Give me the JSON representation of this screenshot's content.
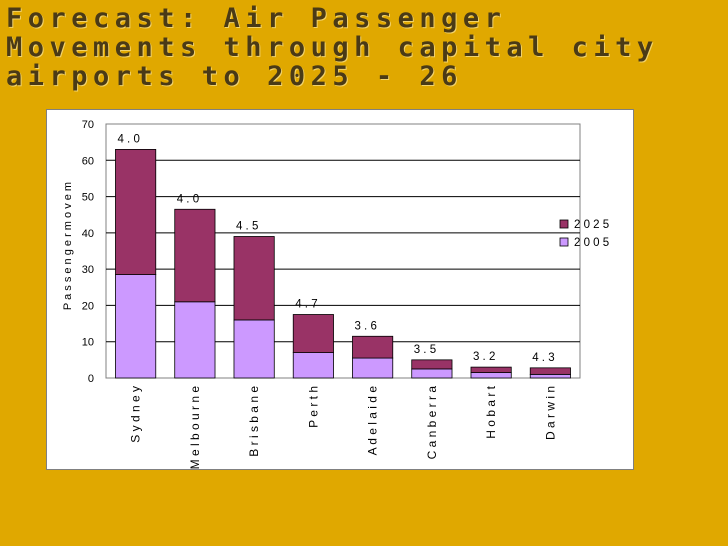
{
  "title": "Forecast: Air Passenger Movements through capital city airports to 2025 - 26",
  "chart_data": {
    "type": "bar",
    "stacked": true,
    "categories": [
      "Sydney",
      "Melbourne",
      "Brisbane",
      "Perth",
      "Adelaide",
      "Canberra",
      "Hobart",
      "Darwin"
    ],
    "category_labels": [
      "S y d n e y",
      "M e l b o u r n e",
      "B r i s b a n e",
      "P e r t h",
      "A d e l a i d e",
      "C a n b e r r a",
      "H o b a r t",
      "D a r w i n"
    ],
    "series": [
      {
        "name": "2005",
        "label": "2 0 0 5",
        "color": "#cc99ff",
        "values": [
          28.5,
          21,
          16,
          7,
          5.5,
          2.5,
          1.5,
          1
        ]
      },
      {
        "name": "2025",
        "label": "2 0 2 5",
        "color": "#993366",
        "values": [
          34.5,
          25.5,
          23,
          10.5,
          6,
          2.5,
          1.5,
          1.8
        ]
      }
    ],
    "data_labels": [
      "4 . 0",
      "4 . 0",
      "4 . 5",
      "4 . 7",
      "3 . 6",
      "3 . 5",
      "3 . 2",
      "4 . 3"
    ],
    "ylabel": "P a s s e n g e r   m o v e m",
    "ylim": [
      0,
      70
    ],
    "yticks": [
      0,
      10,
      20,
      30,
      40,
      50,
      60,
      70
    ],
    "grid": true,
    "legend": "right"
  }
}
